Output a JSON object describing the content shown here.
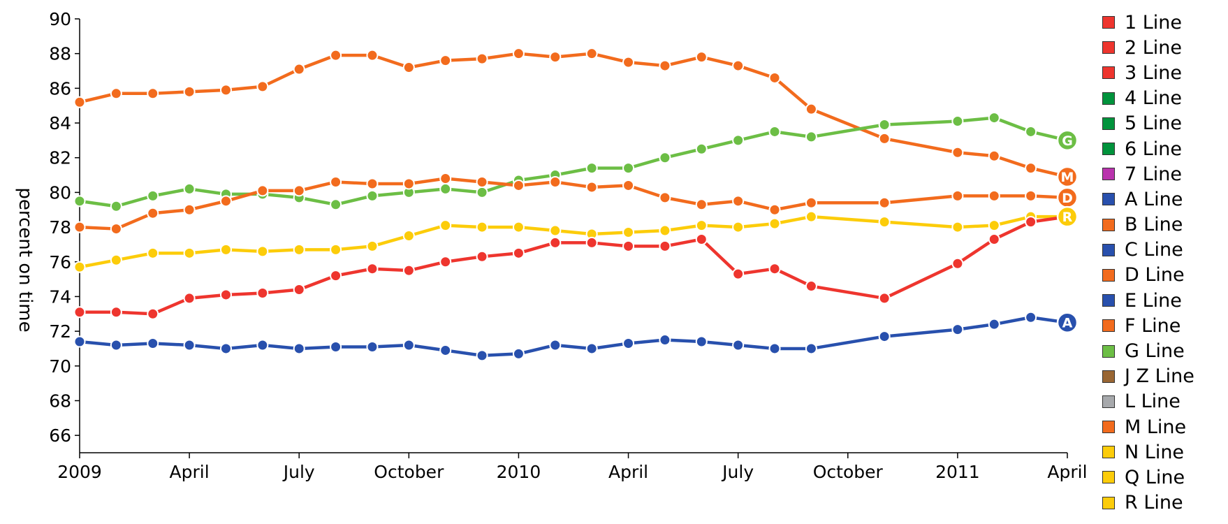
{
  "chart_data": {
    "type": "line",
    "ylabel": "percent on time",
    "ylim": [
      65,
      90
    ],
    "yticks": [
      66,
      68,
      70,
      72,
      74,
      76,
      78,
      80,
      82,
      84,
      86,
      88,
      90
    ],
    "x_ticks": [
      "2009-01",
      "2009-04",
      "2009-07",
      "2009-10",
      "2010-01",
      "2010-04",
      "2010-07",
      "2010-10",
      "2011-01",
      "2011-04"
    ],
    "x_tick_labels": [
      "2009",
      "April",
      "July",
      "October",
      "2010",
      "April",
      "July",
      "October",
      "2011",
      "April"
    ],
    "x": [
      "2009-01",
      "2009-02",
      "2009-03",
      "2009-04",
      "2009-05",
      "2009-06",
      "2009-07",
      "2009-08",
      "2009-09",
      "2009-10",
      "2009-11",
      "2009-12",
      "2010-01",
      "2010-02",
      "2010-03",
      "2010-04",
      "2010-05",
      "2010-06",
      "2010-07",
      "2010-08",
      "2010-09",
      "2010-11",
      "2011-01",
      "2011-02",
      "2011-03",
      "2011-04"
    ],
    "series": [
      {
        "name": "M",
        "color": "#f26b1d",
        "badge": "M",
        "values": [
          85.2,
          85.7,
          85.7,
          85.8,
          85.9,
          86.1,
          87.1,
          87.9,
          87.9,
          87.2,
          87.6,
          87.7,
          88.0,
          87.8,
          88.0,
          87.5,
          87.3,
          87.8,
          87.3,
          86.6,
          84.8,
          83.1,
          82.3,
          82.1,
          81.4,
          80.9
        ]
      },
      {
        "name": "G",
        "color": "#6cbe45",
        "badge": "G",
        "values": [
          79.5,
          79.2,
          79.8,
          80.2,
          79.9,
          79.9,
          79.7,
          79.3,
          79.8,
          80.0,
          80.2,
          80.0,
          80.7,
          81.0,
          81.4,
          81.4,
          82.0,
          82.5,
          83.0,
          83.5,
          83.2,
          83.9,
          84.1,
          84.3,
          83.5,
          83.0
        ]
      },
      {
        "name": "D",
        "color": "#f26b1d",
        "badge": "D",
        "values": [
          78.0,
          77.9,
          78.8,
          79.0,
          79.5,
          80.1,
          80.1,
          80.6,
          80.5,
          80.5,
          80.8,
          80.6,
          80.4,
          80.6,
          80.3,
          80.4,
          79.7,
          79.3,
          79.5,
          79.0,
          79.4,
          79.4,
          79.8,
          79.8,
          79.8,
          79.7
        ]
      },
      {
        "name": "R",
        "color": "#fccc0a",
        "badge": "R",
        "values": [
          75.7,
          76.1,
          76.5,
          76.5,
          76.7,
          76.6,
          76.7,
          76.7,
          76.9,
          77.5,
          78.1,
          78.0,
          78.0,
          77.8,
          77.6,
          77.7,
          77.8,
          78.1,
          78.0,
          78.2,
          78.6,
          78.3,
          78.0,
          78.1,
          78.6,
          78.6
        ]
      },
      {
        "name": "red",
        "color": "#ee352e",
        "badge": "",
        "values": [
          73.1,
          73.1,
          73.0,
          73.9,
          74.1,
          74.2,
          74.4,
          75.2,
          75.6,
          75.5,
          76.0,
          76.3,
          76.5,
          77.1,
          77.1,
          76.9,
          76.9,
          77.3,
          75.3,
          75.6,
          74.6,
          73.9,
          75.9,
          77.3,
          78.3,
          78.6
        ]
      },
      {
        "name": "A",
        "color": "#2850ad",
        "badge": "A",
        "values": [
          71.4,
          71.2,
          71.3,
          71.2,
          71.0,
          71.2,
          71.0,
          71.1,
          71.1,
          71.2,
          70.9,
          70.6,
          70.7,
          71.2,
          71.0,
          71.3,
          71.5,
          71.4,
          71.2,
          71.0,
          71.0,
          71.7,
          72.1,
          72.4,
          72.8,
          72.5
        ]
      }
    ]
  },
  "legend": {
    "items": [
      {
        "label": "1 Line",
        "color": "#ee352e"
      },
      {
        "label": "2 Line",
        "color": "#ee352e"
      },
      {
        "label": "3 Line",
        "color": "#ee352e"
      },
      {
        "label": "4 Line",
        "color": "#00933c"
      },
      {
        "label": "5 Line",
        "color": "#00933c"
      },
      {
        "label": "6 Line",
        "color": "#00933c"
      },
      {
        "label": "7 Line",
        "color": "#b933ad"
      },
      {
        "label": "A Line",
        "color": "#2850ad"
      },
      {
        "label": "B Line",
        "color": "#f26b1d"
      },
      {
        "label": "C Line",
        "color": "#2850ad"
      },
      {
        "label": "D Line",
        "color": "#f26b1d"
      },
      {
        "label": "E Line",
        "color": "#2850ad"
      },
      {
        "label": "F Line",
        "color": "#f26b1d"
      },
      {
        "label": "G Line",
        "color": "#6cbe45"
      },
      {
        "label": "J Z Line",
        "color": "#996633"
      },
      {
        "label": "L Line",
        "color": "#a7a9ac"
      },
      {
        "label": "M Line",
        "color": "#f26b1d"
      },
      {
        "label": "N Line",
        "color": "#fccc0a"
      },
      {
        "label": "Q Line",
        "color": "#fccc0a"
      },
      {
        "label": "R Line",
        "color": "#fccc0a"
      }
    ]
  }
}
